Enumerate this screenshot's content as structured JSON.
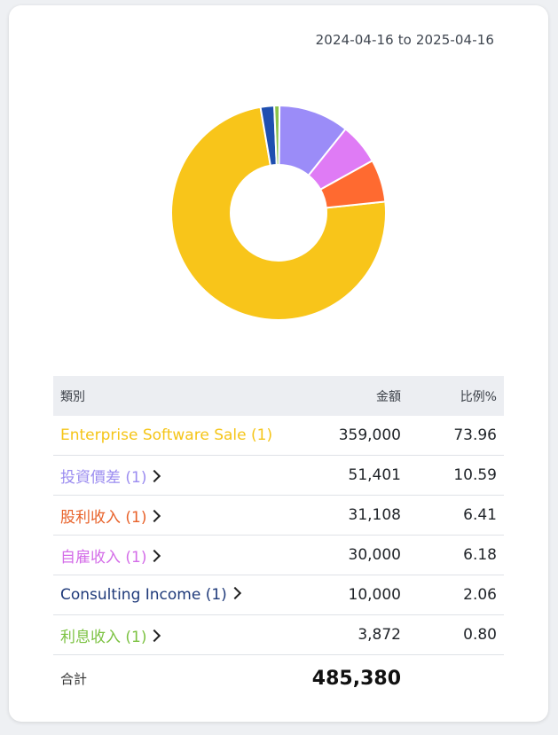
{
  "date_range": "2024-04-16 to 2025-04-16",
  "table": {
    "headers": {
      "category": "類別",
      "amount": "金額",
      "ratio": "比例%"
    },
    "rows": [
      {
        "name": "Enterprise Software Sale (1)",
        "amount": "359,000",
        "ratio": "73.96",
        "color": "#f5c518",
        "chevron": false
      },
      {
        "name": "投資價差 (1)",
        "amount": "51,401",
        "ratio": "10.59",
        "color": "#9b8cf0",
        "chevron": true
      },
      {
        "name": "股利收入 (1)",
        "amount": "31,108",
        "ratio": "6.41",
        "color": "#e8622a",
        "chevron": true
      },
      {
        "name": "自雇收入 (1)",
        "amount": "30,000",
        "ratio": "6.18",
        "color": "#d46de8",
        "chevron": true
      },
      {
        "name": "Consulting Income (1)",
        "amount": "10,000",
        "ratio": "2.06",
        "color": "#1f3a7a",
        "chevron": true
      },
      {
        "name": "利息收入 (1)",
        "amount": "3,872",
        "ratio": "0.80",
        "color": "#7cc242",
        "chevron": true
      }
    ],
    "total_label": "合計",
    "total_value": "485,380"
  },
  "chart_data": {
    "type": "pie",
    "donut": true,
    "categories": [
      "Enterprise Software Sale",
      "投資價差",
      "股利收入",
      "自雇收入",
      "Consulting Income",
      "利息收入"
    ],
    "values": [
      359000,
      51401,
      31108,
      30000,
      10000,
      3872
    ],
    "percent": [
      73.96,
      10.59,
      6.41,
      6.18,
      2.06,
      0.8
    ],
    "colors": [
      "#f8c51a",
      "#9b8cf8",
      "#ff6a30",
      "#df7bf5",
      "#1f4fb0",
      "#8bc34a"
    ],
    "plot_order": [
      "Enterprise Software Sale",
      "Consulting Income",
      "利息收入",
      "投資價差",
      "自雇收入",
      "股利收入"
    ]
  }
}
